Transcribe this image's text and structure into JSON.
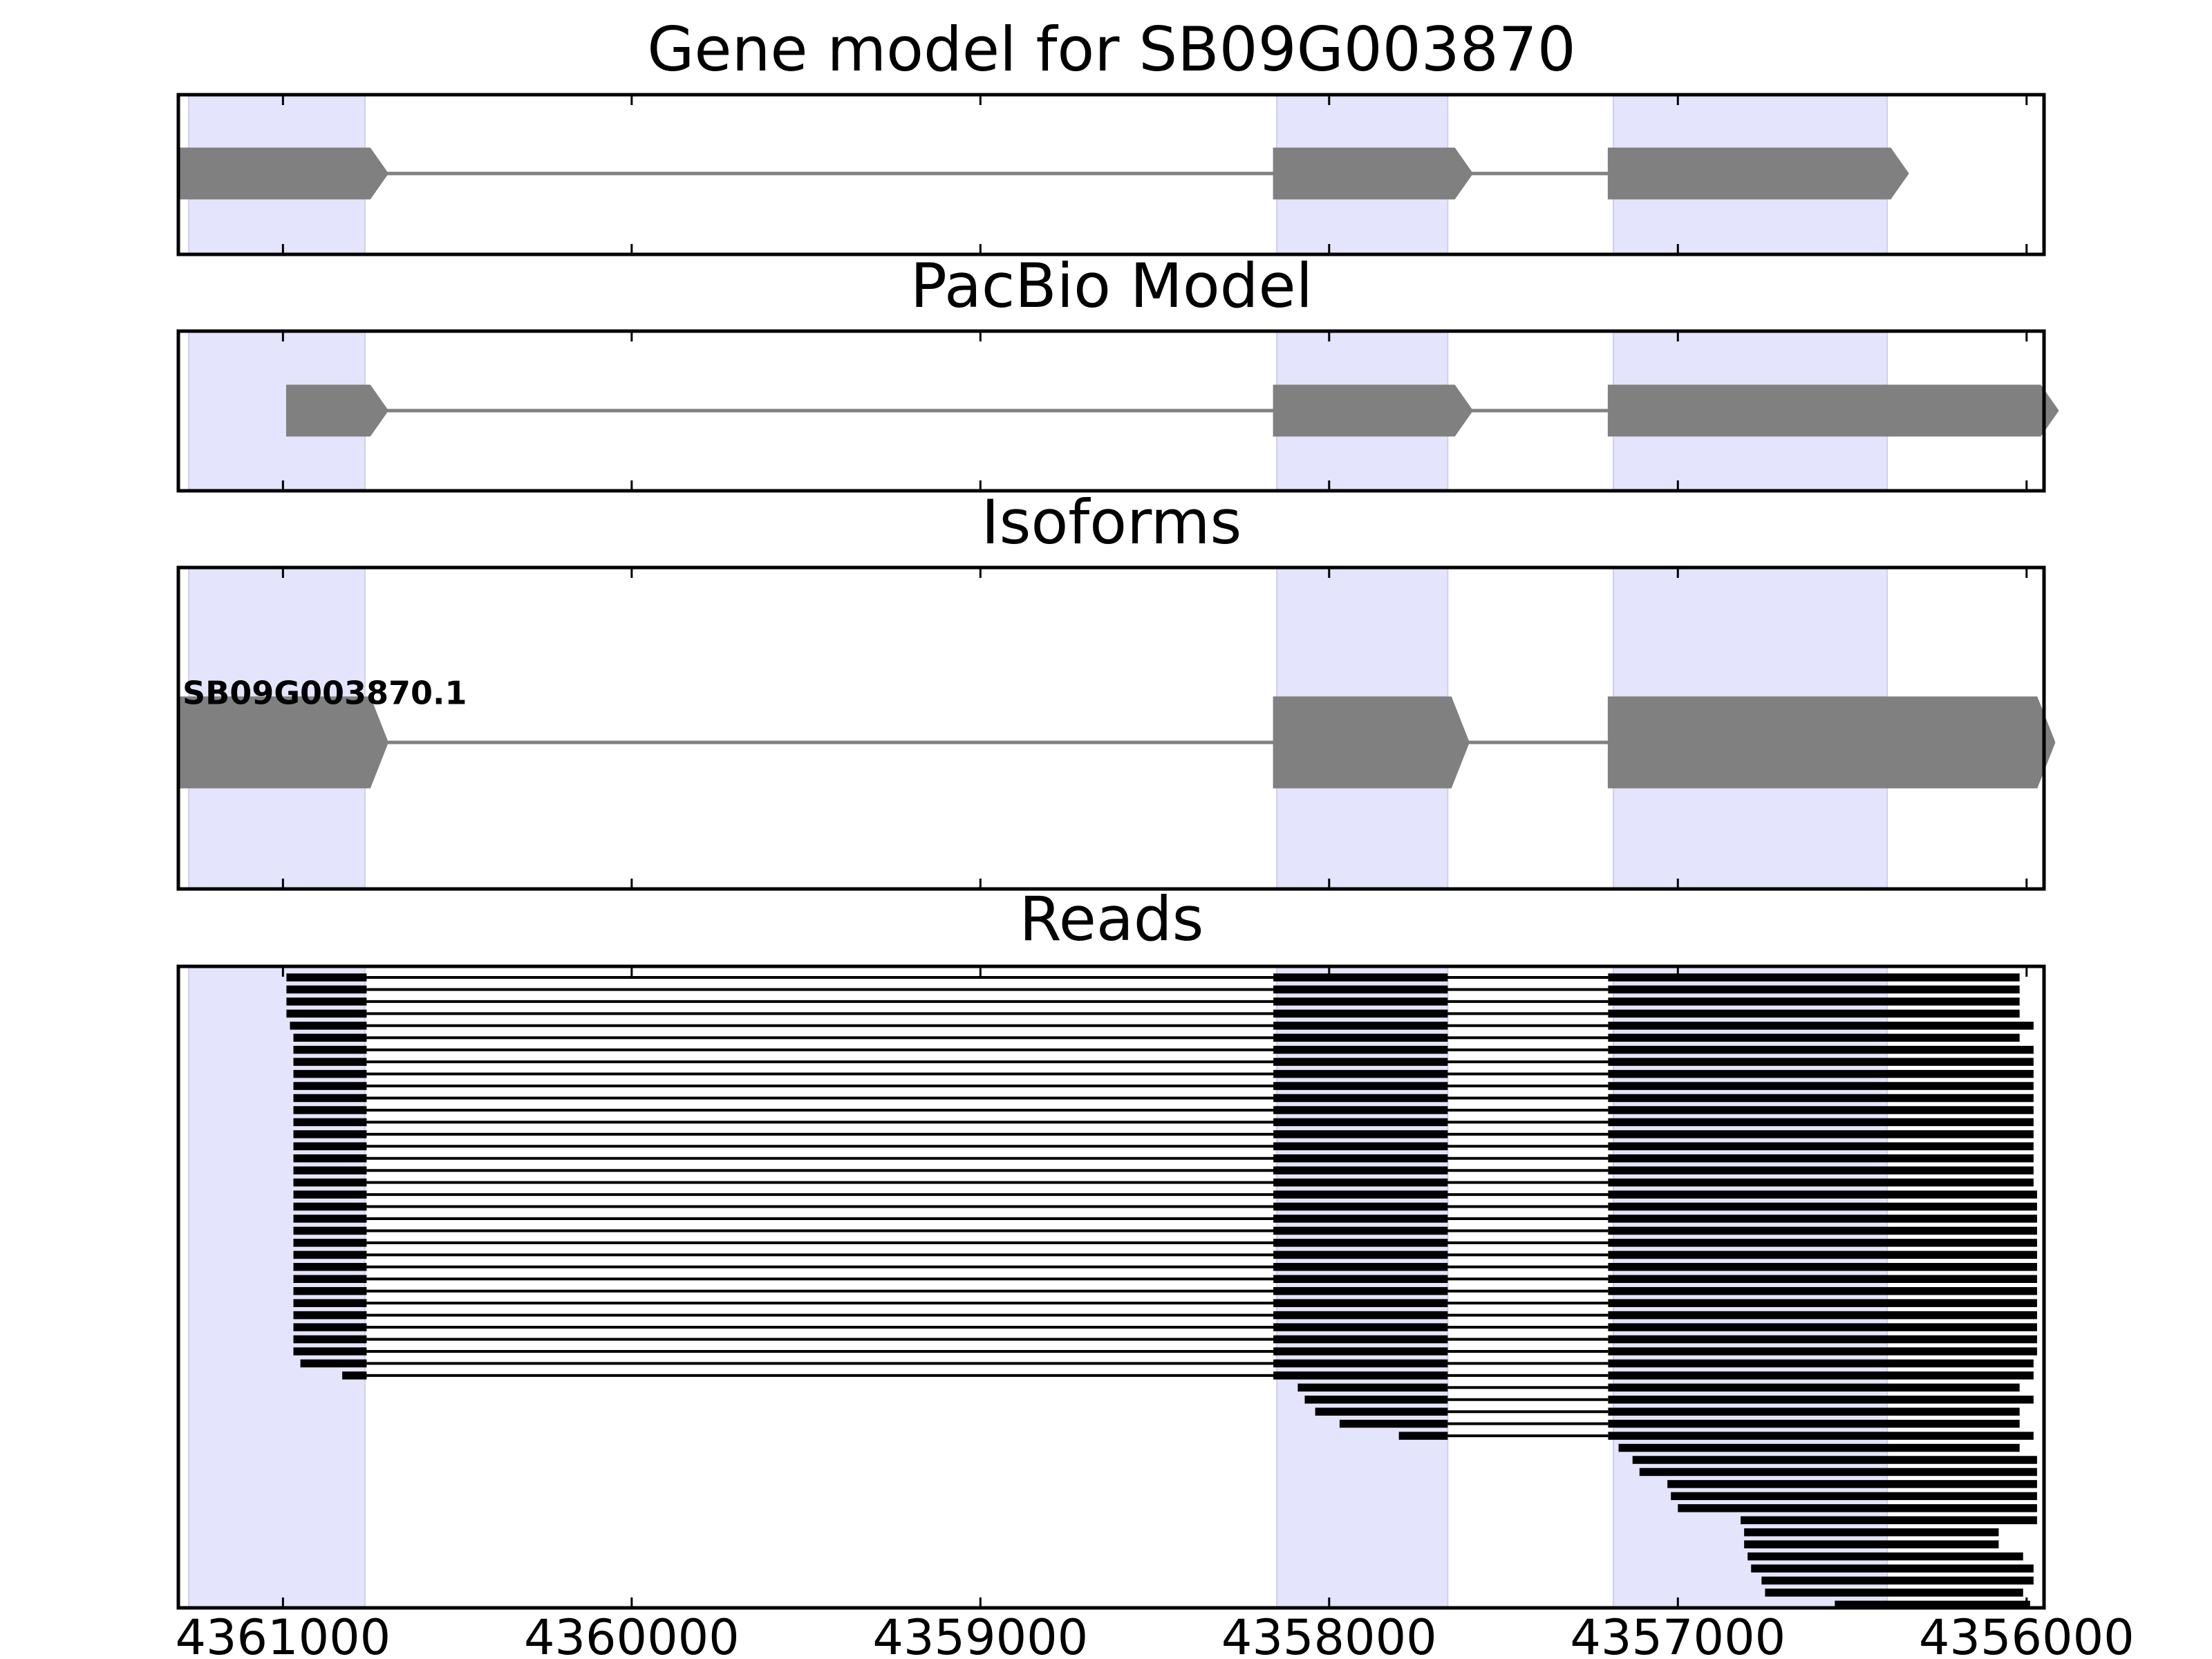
{
  "chart_data": {
    "type": "gene-structure",
    "xlim": [
      4361300,
      4355950
    ],
    "x_axis_reversed": true,
    "colors": {
      "exon_highlight": "#e4e4fc",
      "model_feature": "#808080",
      "intron_line": "#808080",
      "reads": "#000000",
      "axes": "#000000"
    },
    "highlight_regions": [
      {
        "start": 4361270,
        "end": 4360765
      },
      {
        "start": 4358150,
        "end": 4357660
      },
      {
        "start": 4357185,
        "end": 4356400
      }
    ],
    "x_ticks": [
      {
        "value": 4361000,
        "label": "4361000"
      },
      {
        "value": 4360000,
        "label": "4360000"
      },
      {
        "value": 4359000,
        "label": "4359000"
      },
      {
        "value": 4358000,
        "label": "4358000"
      },
      {
        "value": 4357000,
        "label": "4357000"
      },
      {
        "value": 4356000,
        "label": "4356000"
      }
    ],
    "panels": [
      {
        "title": "Gene model for SB09G003870",
        "features": [
          {
            "label": "",
            "exons": [
              [
                4361300,
                4360750
              ],
              [
                4358160,
                4357640
              ],
              [
                4357200,
                4356390
              ]
            ]
          }
        ]
      },
      {
        "title": "PacBio Model",
        "features": [
          {
            "label": "",
            "exons": [
              [
                4360990,
                4360750
              ],
              [
                4358160,
                4357640
              ],
              [
                4357200,
                4355960
              ]
            ]
          }
        ]
      },
      {
        "title": "Isoforms",
        "features": [
          {
            "label": "SB09G003870.1",
            "exons": [
              [
                4361300,
                4360750
              ],
              [
                4358160,
                4357650
              ],
              [
                4357200,
                4355970
              ]
            ]
          }
        ]
      },
      {
        "title": "Reads",
        "reads": [
          [
            [
              4360990,
              4360760
            ],
            [
              4358160,
              4357660
            ],
            [
              4357200,
              4356020
            ]
          ],
          [
            [
              4360990,
              4360760
            ],
            [
              4358160,
              4357660
            ],
            [
              4357200,
              4356020
            ]
          ],
          [
            [
              4360990,
              4360760
            ],
            [
              4358160,
              4357660
            ],
            [
              4357200,
              4356020
            ]
          ],
          [
            [
              4360990,
              4360760
            ],
            [
              4358160,
              4357660
            ],
            [
              4357200,
              4356020
            ]
          ],
          [
            [
              4360980,
              4360760
            ],
            [
              4358160,
              4357660
            ],
            [
              4357200,
              4355980
            ]
          ],
          [
            [
              4360970,
              4360760
            ],
            [
              4358160,
              4357660
            ],
            [
              4357200,
              4356020
            ]
          ],
          [
            [
              4360970,
              4360760
            ],
            [
              4358160,
              4357660
            ],
            [
              4357200,
              4355980
            ]
          ],
          [
            [
              4360970,
              4360760
            ],
            [
              4358160,
              4357660
            ],
            [
              4357200,
              4355980
            ]
          ],
          [
            [
              4360970,
              4360760
            ],
            [
              4358160,
              4357660
            ],
            [
              4357200,
              4355980
            ]
          ],
          [
            [
              4360970,
              4360760
            ],
            [
              4358160,
              4357660
            ],
            [
              4357200,
              4355980
            ]
          ],
          [
            [
              4360970,
              4360760
            ],
            [
              4358160,
              4357660
            ],
            [
              4357200,
              4355980
            ]
          ],
          [
            [
              4360970,
              4360760
            ],
            [
              4358160,
              4357660
            ],
            [
              4357200,
              4355980
            ]
          ],
          [
            [
              4360970,
              4360760
            ],
            [
              4358160,
              4357660
            ],
            [
              4357200,
              4355980
            ]
          ],
          [
            [
              4360970,
              4360760
            ],
            [
              4358160,
              4357660
            ],
            [
              4357200,
              4355980
            ]
          ],
          [
            [
              4360970,
              4360760
            ],
            [
              4358160,
              4357660
            ],
            [
              4357200,
              4355980
            ]
          ],
          [
            [
              4360970,
              4360760
            ],
            [
              4358160,
              4357660
            ],
            [
              4357200,
              4355980
            ]
          ],
          [
            [
              4360970,
              4360760
            ],
            [
              4358160,
              4357660
            ],
            [
              4357200,
              4355980
            ]
          ],
          [
            [
              4360970,
              4360760
            ],
            [
              4358160,
              4357660
            ],
            [
              4357200,
              4355980
            ]
          ],
          [
            [
              4360970,
              4360760
            ],
            [
              4358160,
              4357660
            ],
            [
              4357200,
              4355970
            ]
          ],
          [
            [
              4360970,
              4360760
            ],
            [
              4358160,
              4357660
            ],
            [
              4357200,
              4355970
            ]
          ],
          [
            [
              4360970,
              4360760
            ],
            [
              4358160,
              4357660
            ],
            [
              4357200,
              4355970
            ]
          ],
          [
            [
              4360970,
              4360760
            ],
            [
              4358160,
              4357660
            ],
            [
              4357200,
              4355970
            ]
          ],
          [
            [
              4360970,
              4360760
            ],
            [
              4358160,
              4357660
            ],
            [
              4357200,
              4355970
            ]
          ],
          [
            [
              4360970,
              4360760
            ],
            [
              4358160,
              4357660
            ],
            [
              4357200,
              4355970
            ]
          ],
          [
            [
              4360970,
              4360760
            ],
            [
              4358160,
              4357660
            ],
            [
              4357200,
              4355970
            ]
          ],
          [
            [
              4360970,
              4360760
            ],
            [
              4358160,
              4357660
            ],
            [
              4357200,
              4355970
            ]
          ],
          [
            [
              4360970,
              4360760
            ],
            [
              4358160,
              4357660
            ],
            [
              4357200,
              4355970
            ]
          ],
          [
            [
              4360970,
              4360760
            ],
            [
              4358160,
              4357660
            ],
            [
              4357200,
              4355970
            ]
          ],
          [
            [
              4360970,
              4360760
            ],
            [
              4358160,
              4357660
            ],
            [
              4357200,
              4355970
            ]
          ],
          [
            [
              4360970,
              4360760
            ],
            [
              4358160,
              4357660
            ],
            [
              4357200,
              4355970
            ]
          ],
          [
            [
              4360970,
              4360760
            ],
            [
              4358160,
              4357660
            ],
            [
              4357200,
              4355970
            ]
          ],
          [
            [
              4360970,
              4360760
            ],
            [
              4358160,
              4357660
            ],
            [
              4357200,
              4355970
            ]
          ],
          [
            [
              4360950,
              4360760
            ],
            [
              4358160,
              4357660
            ],
            [
              4357200,
              4355980
            ]
          ],
          [
            [
              4360830,
              4360760
            ],
            [
              4358160,
              4357660
            ],
            [
              4357200,
              4355980
            ]
          ],
          [
            [
              4358090,
              4357660
            ],
            [
              4357200,
              4356020
            ]
          ],
          [
            [
              4358070,
              4357660
            ],
            [
              4357200,
              4355980
            ]
          ],
          [
            [
              4358040,
              4357660
            ],
            [
              4357200,
              4356020
            ]
          ],
          [
            [
              4357970,
              4357660
            ],
            [
              4357200,
              4356020
            ]
          ],
          [
            [
              4357800,
              4357660
            ],
            [
              4357200,
              4355980
            ]
          ],
          [
            [
              4357170,
              4356020
            ]
          ],
          [
            [
              4357130,
              4355970
            ]
          ],
          [
            [
              4357110,
              4355970
            ]
          ],
          [
            [
              4357030,
              4355970
            ]
          ],
          [
            [
              4357020,
              4355970
            ]
          ],
          [
            [
              4357000,
              4355970
            ]
          ],
          [
            [
              4356820,
              4355970
            ]
          ],
          [
            [
              4356810,
              4356080
            ]
          ],
          [
            [
              4356810,
              4356080
            ]
          ],
          [
            [
              4356800,
              4356010
            ]
          ],
          [
            [
              4356790,
              4355980
            ]
          ],
          [
            [
              4356760,
              4355980
            ]
          ],
          [
            [
              4356750,
              4356010
            ]
          ],
          [
            [
              4356550,
              4355990
            ]
          ]
        ]
      }
    ]
  }
}
